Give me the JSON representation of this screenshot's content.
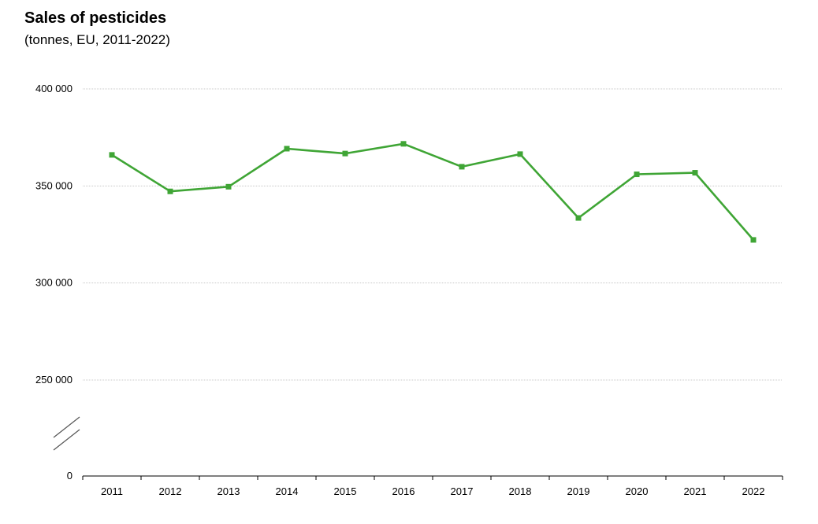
{
  "chart_data": {
    "type": "line",
    "title": "Sales of pesticides",
    "subtitle": "(tonnes, EU, 2011-2022)",
    "categories": [
      "2011",
      "2012",
      "2013",
      "2014",
      "2015",
      "2016",
      "2017",
      "2018",
      "2019",
      "2020",
      "2021",
      "2022"
    ],
    "series": [
      {
        "values": [
          366000,
          347200,
          349600,
          369200,
          366700,
          371700,
          359900,
          366400,
          333500,
          356000,
          356800,
          322200
        ],
        "color": "#3fa535"
      }
    ],
    "y_ticks": [
      {
        "value": 400000,
        "label": "400 000"
      },
      {
        "value": 350000,
        "label": "350 000"
      },
      {
        "value": 300000,
        "label": "300 000"
      },
      {
        "value": 250000,
        "label": "250 000"
      },
      {
        "value": 0,
        "label": "0"
      }
    ],
    "ylim": [
      250000,
      400000
    ],
    "axis_break": true,
    "grid": true,
    "legend": "none"
  }
}
